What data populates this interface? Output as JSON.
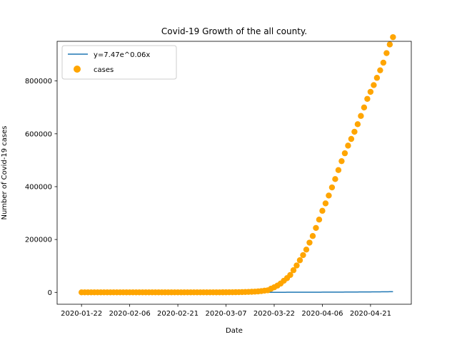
{
  "chart_data": {
    "type": "scatter",
    "title": "Covid-19 Growth of the all county.",
    "xlabel": "Date",
    "ylabel": "Number of Covid-19 cases",
    "x_tick_labels": [
      "2020-01-22",
      "2020-02-06",
      "2020-02-21",
      "2020-03-07",
      "2020-03-22",
      "2020-04-06",
      "2020-04-21"
    ],
    "x_tick_days": [
      0,
      15,
      30,
      45,
      60,
      75,
      90
    ],
    "y_tick_labels": [
      "0",
      "200000",
      "400000",
      "600000",
      "800000"
    ],
    "y_tick_values": [
      0,
      200000,
      400000,
      600000,
      800000
    ],
    "xlim_days": [
      -7.6,
      102.7
    ],
    "ylim": [
      -45000,
      950000
    ],
    "legend_position": "upper left",
    "grid": false,
    "fit_line": {
      "name": "y=7.47e^0.06x",
      "color": "#1f77b4",
      "a": 7.47,
      "b": 0.06
    },
    "series": [
      {
        "name": "cases",
        "color": "#ffa500",
        "x_days": [
          0,
          1,
          2,
          3,
          4,
          5,
          6,
          7,
          8,
          9,
          10,
          11,
          12,
          13,
          14,
          15,
          16,
          17,
          18,
          19,
          20,
          21,
          22,
          23,
          24,
          25,
          26,
          27,
          28,
          29,
          30,
          31,
          32,
          33,
          34,
          35,
          36,
          37,
          38,
          39,
          40,
          41,
          42,
          43,
          44,
          45,
          46,
          47,
          48,
          49,
          50,
          51,
          52,
          53,
          54,
          55,
          56,
          57,
          58,
          59,
          60,
          61,
          62,
          63,
          64,
          65,
          66,
          67,
          68,
          69,
          70,
          71,
          72,
          73,
          74,
          75,
          76,
          77,
          78,
          79,
          80,
          81,
          82,
          83,
          84,
          85,
          86,
          87,
          88,
          89,
          90,
          91,
          92,
          93,
          94,
          95,
          96,
          97
        ],
        "values": [
          1,
          1,
          2,
          2,
          5,
          5,
          5,
          5,
          5,
          7,
          8,
          8,
          11,
          11,
          11,
          11,
          11,
          12,
          12,
          12,
          12,
          12,
          13,
          13,
          14,
          14,
          14,
          14,
          14,
          14,
          15,
          15,
          15,
          25,
          25,
          53,
          53,
          59,
          60,
          62,
          70,
          76,
          101,
          122,
          153,
          221,
          278,
          417,
          537,
          605,
          959,
          1281,
          1663,
          2179,
          2726,
          3499,
          4632,
          6421,
          7786,
          13680,
          19101,
          25493,
          33276,
          43847,
          53740,
          65778,
          83836,
          101657,
          121478,
          140886,
          161807,
          188172,
          213242,
          243622,
          275367,
          308650,
          336802,
          366317,
          397121,
          428654,
          462780,
          496535,
          526396,
          555313,
          580619,
          607670,
          636350,
          667592,
          699706,
          732197,
          758809,
          784326,
          811865,
          840351,
          869170,
          905358,
          938154,
          965785
        ]
      }
    ]
  }
}
